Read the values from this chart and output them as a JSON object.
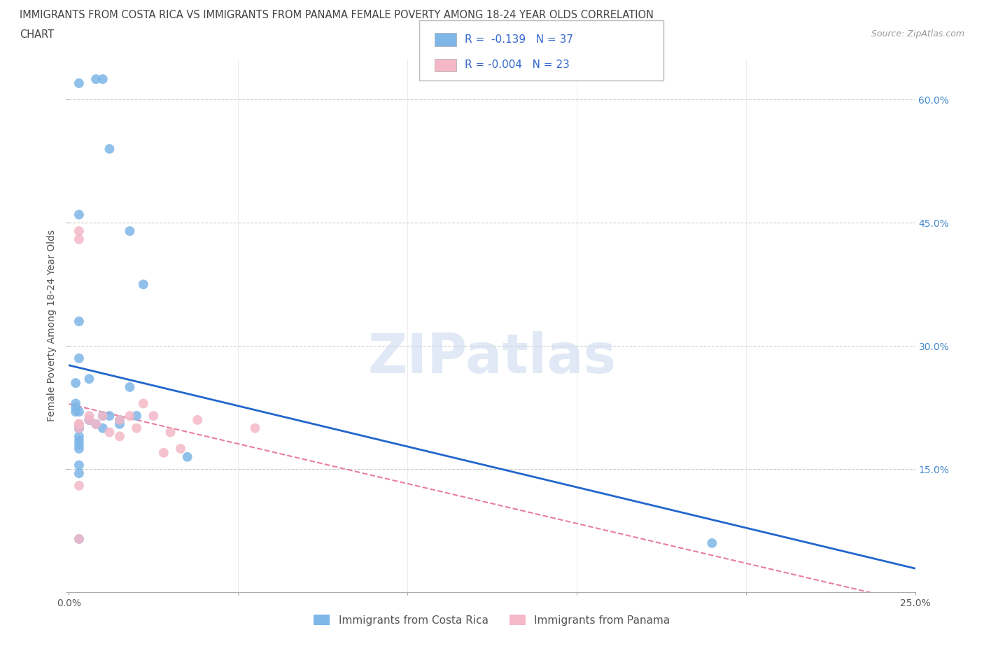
{
  "title_line1": "IMMIGRANTS FROM COSTA RICA VS IMMIGRANTS FROM PANAMA FEMALE POVERTY AMONG 18-24 YEAR OLDS CORRELATION",
  "title_line2": "CHART",
  "source_text": "Source: ZipAtlas.com",
  "ylabel": "Female Poverty Among 18-24 Year Olds",
  "xlim": [
    0.0,
    0.25
  ],
  "ylim": [
    0.0,
    0.65
  ],
  "r_costa_rica": -0.139,
  "n_costa_rica": 37,
  "r_panama": -0.004,
  "n_panama": 23,
  "color_cr": "#7eb6e8",
  "color_pa": "#f4b8c8",
  "color_cr_line": "#2266cc",
  "color_pa_line": "#e87ea0",
  "watermark": "ZIPatlas",
  "costa_rica_x": [
    0.003,
    0.008,
    0.01,
    0.012,
    0.003,
    0.018,
    0.022,
    0.003,
    0.003,
    0.006,
    0.002,
    0.002,
    0.002,
    0.002,
    0.003,
    0.006,
    0.008,
    0.012,
    0.01,
    0.015,
    0.018,
    0.003,
    0.006,
    0.01,
    0.015,
    0.02,
    0.035,
    0.003,
    0.003,
    0.003,
    0.003,
    0.003,
    0.19,
    0.003,
    0.003,
    0.003,
    0.003
  ],
  "costa_rica_y": [
    0.62,
    0.625,
    0.625,
    0.54,
    0.46,
    0.44,
    0.375,
    0.33,
    0.285,
    0.26,
    0.255,
    0.23,
    0.225,
    0.22,
    0.22,
    0.21,
    0.205,
    0.215,
    0.2,
    0.21,
    0.25,
    0.2,
    0.21,
    0.215,
    0.205,
    0.215,
    0.165,
    0.2,
    0.2,
    0.19,
    0.185,
    0.18,
    0.06,
    0.175,
    0.155,
    0.145,
    0.065
  ],
  "panama_x": [
    0.003,
    0.003,
    0.003,
    0.003,
    0.003,
    0.006,
    0.006,
    0.008,
    0.01,
    0.012,
    0.015,
    0.015,
    0.018,
    0.02,
    0.022,
    0.025,
    0.028,
    0.03,
    0.033,
    0.038,
    0.055,
    0.003,
    0.003
  ],
  "panama_y": [
    0.44,
    0.43,
    0.205,
    0.205,
    0.2,
    0.215,
    0.21,
    0.205,
    0.215,
    0.195,
    0.21,
    0.19,
    0.215,
    0.2,
    0.23,
    0.215,
    0.17,
    0.195,
    0.175,
    0.21,
    0.2,
    0.13,
    0.065
  ],
  "legend_label_cr": "Immigrants from Costa Rica",
  "legend_label_pa": "Immigrants from Panama",
  "grid_color": "#cccccc",
  "background_color": "#ffffff"
}
